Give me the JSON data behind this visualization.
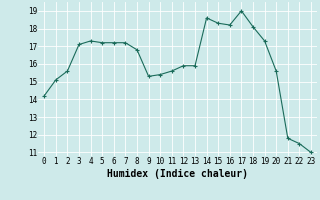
{
  "x": [
    0,
    1,
    2,
    3,
    4,
    5,
    6,
    7,
    8,
    9,
    10,
    11,
    12,
    13,
    14,
    15,
    16,
    17,
    18,
    19,
    20,
    21,
    22,
    23
  ],
  "y": [
    14.2,
    15.1,
    15.6,
    17.1,
    17.3,
    17.2,
    17.2,
    17.2,
    16.8,
    15.3,
    15.4,
    15.6,
    15.9,
    15.9,
    18.6,
    18.3,
    18.2,
    19.0,
    18.1,
    17.3,
    15.6,
    11.8,
    11.5,
    11.0
  ],
  "line_color": "#1a6b5a",
  "marker": "+",
  "marker_size": 3,
  "marker_lw": 0.8,
  "xlabel": "Humidex (Indice chaleur)",
  "xlim": [
    -0.5,
    23.5
  ],
  "ylim": [
    10.8,
    19.5
  ],
  "yticks": [
    11,
    12,
    13,
    14,
    15,
    16,
    17,
    18,
    19
  ],
  "xticks": [
    0,
    1,
    2,
    3,
    4,
    5,
    6,
    7,
    8,
    9,
    10,
    11,
    12,
    13,
    14,
    15,
    16,
    17,
    18,
    19,
    20,
    21,
    22,
    23
  ],
  "bg_color": "#ceeaea",
  "grid_color": "#ffffff",
  "tick_fontsize": 5.5,
  "xlabel_fontsize": 7,
  "line_width": 0.8
}
